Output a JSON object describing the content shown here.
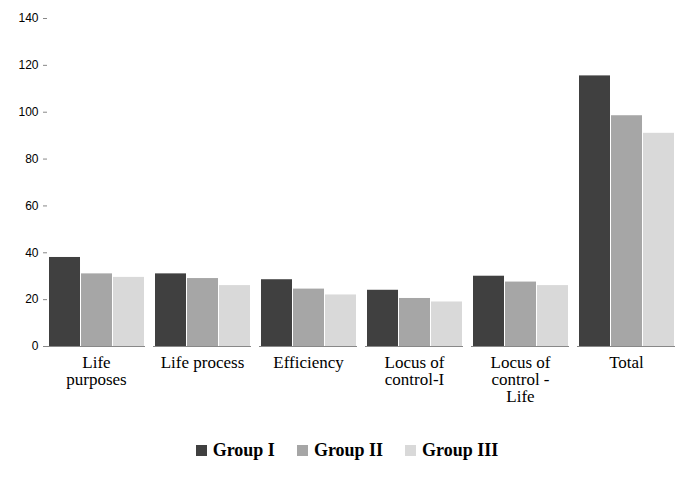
{
  "chart_data": {
    "type": "bar",
    "categories": [
      "Life purposes",
      "Life process",
      "Efficiency",
      "Locus of control-I",
      "Locus of control - Life",
      "Total"
    ],
    "series": [
      {
        "name": "Group I",
        "color": "#404040",
        "values": [
          38,
          31,
          28.5,
          24,
          30,
          115.5
        ]
      },
      {
        "name": "Group II",
        "color": "#a6a6a6",
        "values": [
          31,
          29,
          24.5,
          20.5,
          27.5,
          98.5
        ]
      },
      {
        "name": "Group III",
        "color": "#d9d9d9",
        "values": [
          29.5,
          26,
          22,
          19,
          26,
          91
        ]
      }
    ],
    "ylim": [
      0,
      140
    ],
    "yticks": [
      0,
      20,
      40,
      60,
      80,
      100,
      120,
      140
    ],
    "grid": false,
    "legend": "bottom"
  }
}
